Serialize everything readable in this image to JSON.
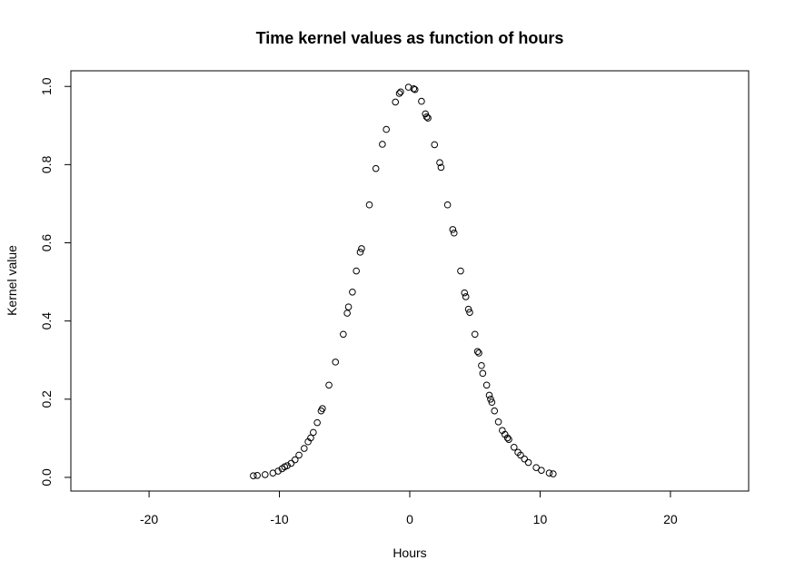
{
  "chart_data": {
    "type": "scatter",
    "title": "Time kernel values as function of hours",
    "xlabel": "Hours",
    "ylabel": "Kernel value",
    "xlim": [
      -26,
      26
    ],
    "ylim": [
      -0.035,
      1.04
    ],
    "x_ticks": [
      -20,
      -10,
      0,
      10,
      20
    ],
    "y_ticks": [
      0.0,
      0.2,
      0.4,
      0.6,
      0.8,
      1.0
    ],
    "x_tick_labels": [
      "-20",
      "-10",
      "0",
      "10",
      "20"
    ],
    "y_tick_labels": [
      "0.0",
      "0.2",
      "0.4",
      "0.6",
      "0.8",
      "1.0"
    ],
    "grid": false,
    "legend": "none",
    "marker": "open-circle",
    "series": [
      {
        "points": [
          [
            -12.0,
            0.004
          ],
          [
            -11.7,
            0.005
          ],
          [
            -11.1,
            0.007
          ],
          [
            -10.5,
            0.011
          ],
          [
            -10.1,
            0.016
          ],
          [
            -9.8,
            0.022
          ],
          [
            -9.6,
            0.027
          ],
          [
            -9.4,
            0.03
          ],
          [
            -9.1,
            0.036
          ],
          [
            -8.8,
            0.045
          ],
          [
            -8.5,
            0.057
          ],
          [
            -8.1,
            0.074
          ],
          [
            -7.8,
            0.091
          ],
          [
            -7.6,
            0.101
          ],
          [
            -7.4,
            0.115
          ],
          [
            -7.1,
            0.14
          ],
          [
            -6.8,
            0.17
          ],
          [
            -6.7,
            0.176
          ],
          [
            -6.2,
            0.236
          ],
          [
            -5.7,
            0.295
          ],
          [
            -5.1,
            0.366
          ],
          [
            -4.8,
            0.42
          ],
          [
            -4.7,
            0.436
          ],
          [
            -4.4,
            0.474
          ],
          [
            -4.1,
            0.528
          ],
          [
            -3.8,
            0.576
          ],
          [
            -3.7,
            0.585
          ],
          [
            -3.1,
            0.697
          ],
          [
            -2.6,
            0.79
          ],
          [
            -2.1,
            0.852
          ],
          [
            -1.8,
            0.89
          ],
          [
            -1.1,
            0.96
          ],
          [
            -0.8,
            0.982
          ],
          [
            -0.7,
            0.986
          ],
          [
            -0.1,
            0.998
          ],
          [
            0.3,
            0.994
          ],
          [
            0.4,
            0.992
          ],
          [
            0.9,
            0.962
          ],
          [
            1.2,
            0.93
          ],
          [
            1.3,
            0.922
          ],
          [
            1.4,
            0.919
          ],
          [
            1.9,
            0.851
          ],
          [
            2.3,
            0.805
          ],
          [
            2.4,
            0.793
          ],
          [
            2.9,
            0.697
          ],
          [
            3.3,
            0.634
          ],
          [
            3.4,
            0.625
          ],
          [
            3.9,
            0.528
          ],
          [
            4.2,
            0.472
          ],
          [
            4.3,
            0.462
          ],
          [
            4.5,
            0.43
          ],
          [
            4.6,
            0.422
          ],
          [
            5.0,
            0.366
          ],
          [
            5.2,
            0.322
          ],
          [
            5.3,
            0.318
          ],
          [
            5.5,
            0.286
          ],
          [
            5.6,
            0.266
          ],
          [
            5.9,
            0.236
          ],
          [
            6.1,
            0.21
          ],
          [
            6.2,
            0.2
          ],
          [
            6.3,
            0.192
          ],
          [
            6.5,
            0.17
          ],
          [
            6.8,
            0.142
          ],
          [
            7.1,
            0.12
          ],
          [
            7.3,
            0.11
          ],
          [
            7.5,
            0.101
          ],
          [
            7.6,
            0.097
          ],
          [
            8.0,
            0.077
          ],
          [
            8.3,
            0.064
          ],
          [
            8.5,
            0.057
          ],
          [
            8.8,
            0.047
          ],
          [
            9.1,
            0.038
          ],
          [
            9.7,
            0.025
          ],
          [
            10.1,
            0.018
          ],
          [
            10.7,
            0.011
          ],
          [
            11.0,
            0.009
          ]
        ]
      }
    ]
  }
}
